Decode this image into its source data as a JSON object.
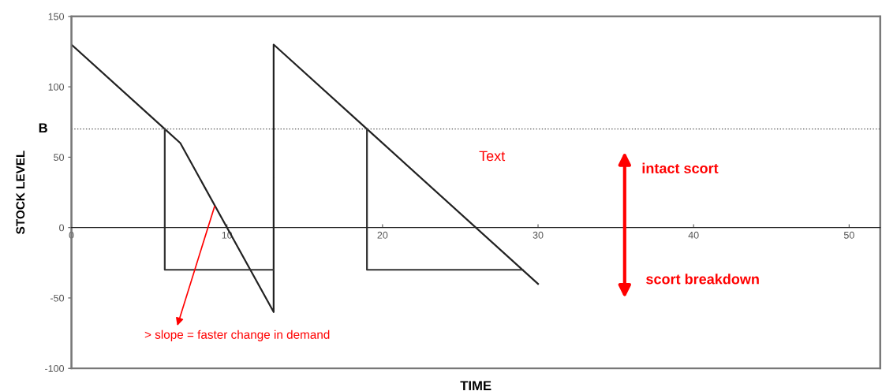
{
  "chart_data": {
    "type": "line",
    "xlabel": "TIME",
    "ylabel": "STOCK LEVEL",
    "xlim": [
      0,
      52
    ],
    "ylim": [
      -100,
      150
    ],
    "xticks": [
      0,
      10,
      20,
      30,
      40,
      50
    ],
    "yticks": [
      -100,
      -50,
      0,
      50,
      100,
      150
    ],
    "grid": false,
    "legend": false,
    "marker": "none",
    "line_style": "solid",
    "series": [
      {
        "color": "#222222",
        "x": [
          0,
          6,
          7,
          13,
          13,
          19,
          30
        ],
        "values": [
          130,
          70,
          60,
          -60,
          130,
          70,
          -40
        ]
      },
      {
        "color": "#333333",
        "x": [
          6,
          6,
          13
        ],
        "values": [
          70,
          -30,
          -30
        ]
      },
      {
        "color": "#333333",
        "x": [
          19,
          19,
          29
        ],
        "values": [
          70,
          -30,
          -30
        ]
      }
    ],
    "ref_lines": [
      {
        "axis": "y",
        "value": 70,
        "label": "B",
        "line_style": "dotted",
        "color": "#555555"
      }
    ],
    "annotations": [
      "Text",
      {
        "text": "> slope = faster change in demand",
        "x": 9.2,
        "y": 15
      },
      "intact scort",
      "scort breakdown"
    ]
  }
}
